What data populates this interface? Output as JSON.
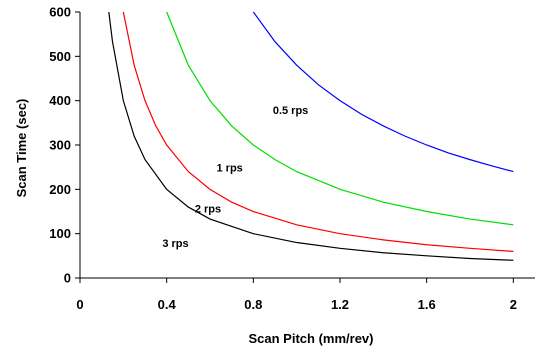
{
  "chart_data": {
    "type": "line",
    "title": "",
    "xlabel": "Scan Pitch (mm/rev)",
    "ylabel": "Scan Time (sec)",
    "xlim": [
      0,
      2.1
    ],
    "ylim": [
      0,
      600
    ],
    "xticks": [
      0,
      0.4,
      0.8,
      1.2,
      1.6,
      2
    ],
    "xtick_labels": [
      "0",
      "0.4",
      "0.8",
      "1.2",
      "1.6",
      "2"
    ],
    "yticks": [
      0,
      100,
      200,
      300,
      400,
      500,
      600
    ],
    "ytick_labels": [
      "0",
      "100",
      "200",
      "300",
      "400",
      "500",
      "600"
    ],
    "grid": false,
    "legend": "none",
    "series": [
      {
        "name": "0.5 rps",
        "color": "#0000ff",
        "label_x": 0.89,
        "label_y": 370,
        "x": [
          0.8,
          0.9,
          1.0,
          1.1,
          1.2,
          1.3,
          1.4,
          1.5,
          1.6,
          1.7,
          1.8,
          1.9,
          2.0
        ],
        "y": [
          600,
          533,
          480,
          436,
          400,
          369,
          343,
          320,
          300,
          282,
          267,
          253,
          240
        ]
      },
      {
        "name": "1 rps",
        "color": "#00dd00",
        "label_x": 0.63,
        "label_y": 240,
        "x": [
          0.4,
          0.5,
          0.6,
          0.7,
          0.8,
          0.9,
          1.0,
          1.2,
          1.4,
          1.6,
          1.8,
          2.0
        ],
        "y": [
          600,
          480,
          400,
          343,
          300,
          267,
          240,
          200,
          171,
          150,
          133,
          120
        ]
      },
      {
        "name": "2 rps",
        "color": "#ff0000",
        "label_x": 0.53,
        "label_y": 148,
        "x": [
          0.2,
          0.25,
          0.3,
          0.35,
          0.4,
          0.5,
          0.6,
          0.7,
          0.8,
          1.0,
          1.2,
          1.4,
          1.6,
          1.8,
          2.0
        ],
        "y": [
          600,
          480,
          400,
          343,
          300,
          240,
          200,
          171,
          150,
          120,
          100,
          86,
          75,
          67,
          60
        ]
      },
      {
        "name": "3 rps",
        "color": "#000000",
        "label_x": 0.38,
        "label_y": 70,
        "x": [
          0.133,
          0.15,
          0.2,
          0.25,
          0.3,
          0.4,
          0.5,
          0.6,
          0.8,
          1.0,
          1.2,
          1.4,
          1.6,
          1.8,
          2.0
        ],
        "y": [
          600,
          533,
          400,
          320,
          267,
          200,
          160,
          133,
          100,
          80,
          67,
          57,
          50,
          44,
          40
        ]
      }
    ]
  }
}
